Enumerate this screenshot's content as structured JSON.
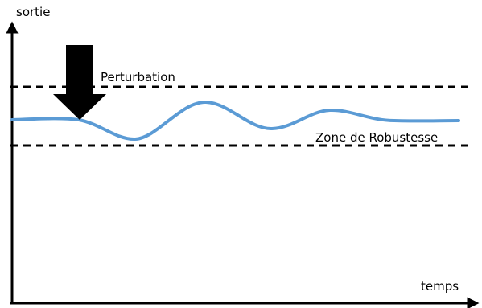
{
  "axes": {
    "y_label": "sortie",
    "x_label": "temps"
  },
  "annotations": {
    "disturbance": "Perturbation",
    "robustness_zone": "Zone de Robustesse"
  },
  "colors": {
    "response_curve": "#5B9BD5",
    "axes": "#000000",
    "arrow": "#000000",
    "zone_bounds": "#000000"
  }
}
